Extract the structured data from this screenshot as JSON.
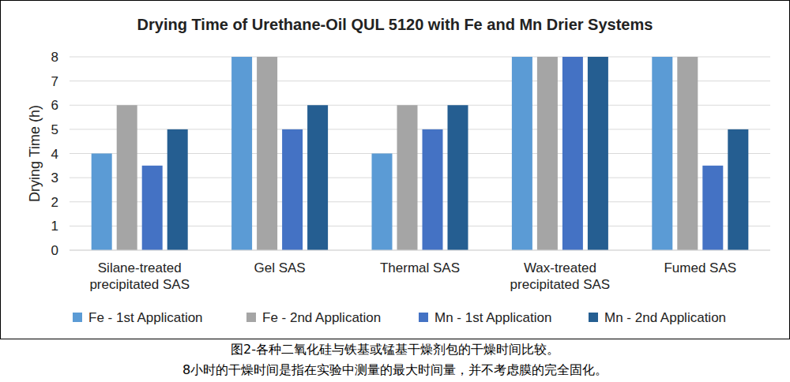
{
  "chart_data": {
    "type": "bar",
    "title": "Drying Time of Urethane-Oil QUL 5120 with Fe and Mn Drier Systems",
    "y_label": "Drying Time (h)",
    "categories": [
      "Silane-treated\nprecipitated SAS",
      "Gel SAS",
      "Thermal SAS",
      "Wax-treated\nprecipitated SAS",
      "Fumed SAS"
    ],
    "series": [
      {
        "name": "Fe - 1st Application",
        "color": "#5b9bd5",
        "values": [
          4,
          8,
          4,
          8,
          8
        ]
      },
      {
        "name": "Fe - 2nd Application",
        "color": "#a5a5a5",
        "values": [
          6,
          8,
          6,
          8,
          8
        ]
      },
      {
        "name": "Mn - 1st Application",
        "color": "#4472c4",
        "values": [
          3.5,
          5,
          5,
          8,
          3.5
        ]
      },
      {
        "name": "Mn - 2nd Application",
        "color": "#255e91",
        "values": [
          5,
          6,
          6,
          8,
          5
        ]
      }
    ],
    "ylim": [
      0,
      8
    ],
    "yticks": [
      0,
      1,
      2,
      3,
      4,
      5,
      6,
      7,
      8
    ],
    "grid": true,
    "legend": "bottom"
  },
  "caption": [
    "图2-各种二氧化硅与铁基或锰基干燥剂包的干燥时间比较。",
    "8小时的干燥时间是指在实验中测量的最大时间量，并不考虑膜的完全固化。"
  ]
}
